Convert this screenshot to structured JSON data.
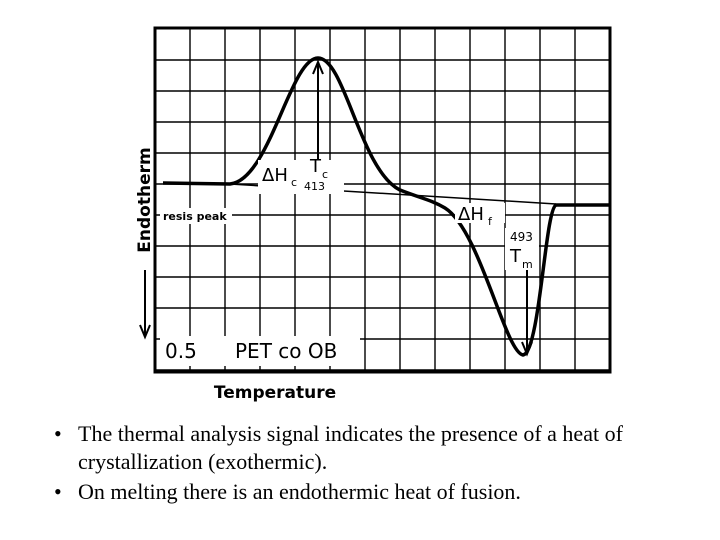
{
  "figure": {
    "y_axis_label": "Endotherm",
    "x_axis_label": "Temperature",
    "annotations": {
      "dhc": "ΔH",
      "dhc_sub": "c",
      "tc": "T",
      "tc_sub": "c",
      "tc_value": "413",
      "dhf": "ΔH",
      "dhf_sub": "f",
      "tm_value": "493",
      "tm": "T",
      "tm_sub": "m",
      "resis_peak": "resis peak",
      "scale": "0.5",
      "sample": "PET co OB"
    }
  },
  "bullets": [
    "The thermal analysis signal indicates the presence of a heat of crystallization (exothermic).",
    "On melting there is an endothermic heat of fusion."
  ]
}
